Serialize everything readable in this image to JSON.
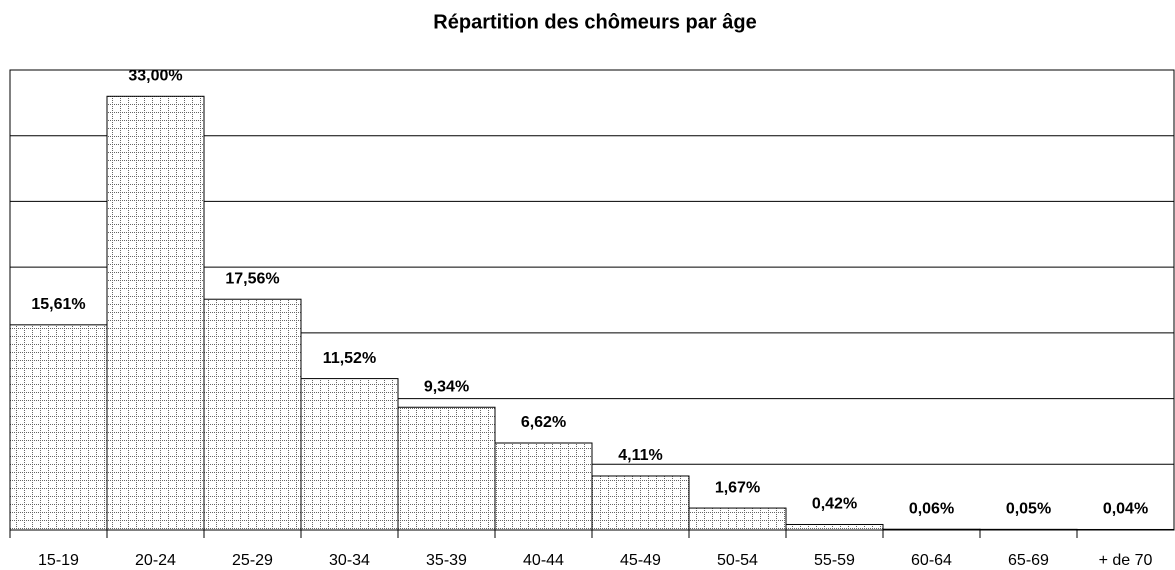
{
  "chart_data": {
    "type": "bar",
    "title": "Répartition des chômeurs par âge",
    "categories": [
      "15-19",
      "20-24",
      "25-29",
      "30-34",
      "35-39",
      "40-44",
      "45-49",
      "50-54",
      "55-59",
      "60-64",
      "65-69",
      "+ de 70"
    ],
    "values": [
      15.61,
      33.0,
      17.56,
      11.52,
      9.34,
      6.62,
      4.11,
      1.67,
      0.42,
      0.06,
      0.05,
      0.04
    ],
    "value_labels": [
      "15,61%",
      "33,00%",
      "17,56%",
      "11,52%",
      "9,34%",
      "6,62%",
      "4,11%",
      "1,67%",
      "0,42%",
      "0,06%",
      "0,05%",
      "0,04%"
    ],
    "color": "#000000",
    "ylim": [
      0,
      35
    ],
    "yticks": [
      0,
      5,
      10,
      15,
      20,
      25,
      30,
      35
    ],
    "grid": true
  }
}
